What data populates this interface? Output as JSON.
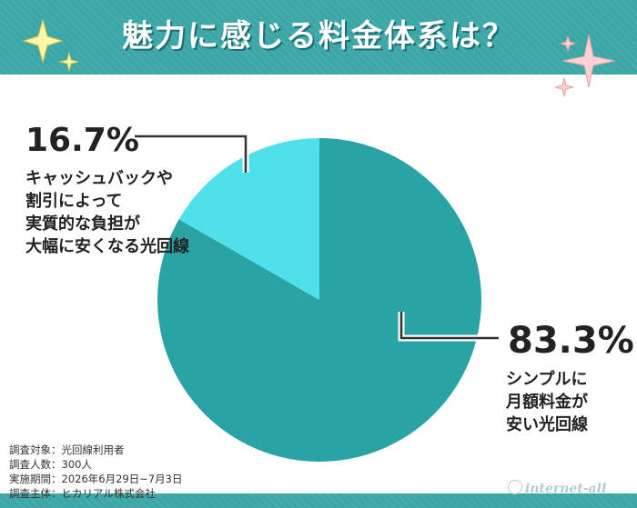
{
  "title": "魅力に感じる料金体系は？",
  "chart_data": {
    "type": "pie",
    "slices": [
      {
        "percent_text": "83.3%",
        "value": 83.3,
        "label_lines": [
          "シンプルに",
          "月額料金が",
          "安い光回線"
        ],
        "color": "#2aa3a5"
      },
      {
        "percent_text": "16.7%",
        "value": 16.7,
        "label_lines": [
          "キャッシュバックや",
          "割引によって",
          "実質的な負担が",
          "大幅に安くなる光回線"
        ],
        "color": "#4fe0ec"
      }
    ]
  },
  "footnote": {
    "target": "調査対象：光回線利用者",
    "count": "調査人数：300人",
    "period": "実施期間：2026年6月29日~7月3日",
    "organizer": "調査主体：ヒカリアル株式会社"
  },
  "logo_text": "internet-all"
}
